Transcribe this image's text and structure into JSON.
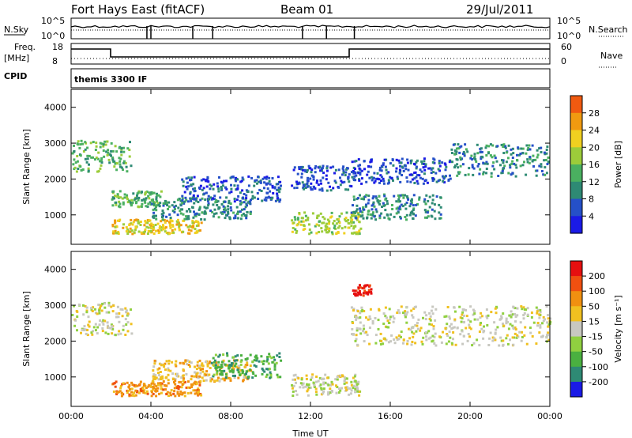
{
  "header": {
    "station": "Fort Hays East (fitACF)",
    "beam": "Beam 01",
    "date": "29/Jul/2011"
  },
  "panels": {
    "nsky_label": "N.Sky",
    "nsky_ticks": [
      "10^5",
      "10^0"
    ],
    "nsearch_label": "N.Search",
    "nsearch_ticks": [
      "10^5",
      "10^0"
    ],
    "freq_label": "Freq.",
    "freq_unit": "[MHz]",
    "freq_ticks": [
      "18",
      "8"
    ],
    "nave_label": "Nave",
    "nave_ticks": [
      "60",
      "0"
    ],
    "cpid_label": "CPID",
    "cpid_value": "themis 3300 IF"
  },
  "colors": {
    "power": [
      "#1a1ae6",
      "#2550c8",
      "#2e8a74",
      "#4ab060",
      "#9ccc3a",
      "#f0d020",
      "#f09a10",
      "#f05a10",
      "#e61010"
    ],
    "velocity": [
      "#1a1ae6",
      "#2e8a74",
      "#4ab040",
      "#90d040",
      "#c8c8c0",
      "#f0c020",
      "#f09010",
      "#f05010",
      "#e61010"
    ]
  },
  "chart_data": [
    {
      "type": "heatmap",
      "name": "power",
      "xlabel": "",
      "ylabel": "Slant Range [km]",
      "x_range": [
        0,
        24
      ],
      "ylim": [
        180,
        4500
      ],
      "yticks": [
        "4000",
        "3000",
        "2000",
        "1000"
      ],
      "ytick_values": [
        4000,
        3000,
        2000,
        1000
      ],
      "colorbar": {
        "label": "Power [dB]",
        "ticks": [
          "28",
          "24",
          "20",
          "16",
          "12",
          "8",
          "4"
        ],
        "tick_values": [
          28,
          24,
          20,
          16,
          12,
          8,
          4
        ],
        "range": [
          0,
          32
        ]
      },
      "features": [
        {
          "t": [
            0.0,
            3.0
          ],
          "r": [
            2200,
            3100
          ],
          "level": 18
        },
        {
          "t": [
            2.0,
            4.5
          ],
          "r": [
            1250,
            1700
          ],
          "level": 16
        },
        {
          "t": [
            2.0,
            6.5
          ],
          "r": [
            500,
            900
          ],
          "level": 24
        },
        {
          "t": [
            4.0,
            9.0
          ],
          "r": [
            900,
            1500
          ],
          "level": 14
        },
        {
          "t": [
            5.5,
            10.5
          ],
          "r": [
            1400,
            2100
          ],
          "level": 10
        },
        {
          "t": [
            11.0,
            14.5
          ],
          "r": [
            500,
            1100
          ],
          "level": 22
        },
        {
          "t": [
            11.0,
            14.0
          ],
          "r": [
            1700,
            2400
          ],
          "level": 9
        },
        {
          "t": [
            14.0,
            18.5
          ],
          "r": [
            900,
            1600
          ],
          "level": 12
        },
        {
          "t": [
            14.0,
            19.0
          ],
          "r": [
            1900,
            2600
          ],
          "level": 11
        },
        {
          "t": [
            19.0,
            24.0
          ],
          "r": [
            2100,
            3000
          ],
          "level": 15
        }
      ]
    },
    {
      "type": "heatmap",
      "name": "velocity",
      "xlabel": "Time UT",
      "ylabel": "Slant Range [km]",
      "x_range": [
        0,
        24
      ],
      "xticks": [
        "00:00",
        "04:00",
        "08:00",
        "12:00",
        "16:00",
        "20:00",
        "00:00"
      ],
      "xtick_values": [
        0,
        4,
        8,
        12,
        16,
        20,
        24
      ],
      "ylim": [
        180,
        4500
      ],
      "yticks": [
        "4000",
        "3000",
        "2000",
        "1000"
      ],
      "ytick_values": [
        4000,
        3000,
        2000,
        1000
      ],
      "colorbar": {
        "label": "Velocity [m s⁻¹]",
        "ticks": [
          "200",
          "100",
          "50",
          "15",
          "-15",
          "-50",
          "-100",
          "-200"
        ],
        "tick_values": [
          200,
          100,
          50,
          15,
          -15,
          -50,
          -100,
          -200
        ]
      },
      "features": [
        {
          "t": [
            0.0,
            3.0
          ],
          "r": [
            2200,
            3100
          ],
          "level": 4
        },
        {
          "t": [
            2.0,
            6.5
          ],
          "r": [
            500,
            900
          ],
          "level": 6
        },
        {
          "t": [
            4.0,
            9.0
          ],
          "r": [
            900,
            1500
          ],
          "level": 5
        },
        {
          "t": [
            7.0,
            10.5
          ],
          "r": [
            1000,
            1700
          ],
          "level": 2
        },
        {
          "t": [
            11.0,
            14.5
          ],
          "r": [
            500,
            1100
          ],
          "level": 4
        },
        {
          "t": [
            14.0,
            24.0
          ],
          "r": [
            1900,
            3000
          ],
          "level": 4
        },
        {
          "t": [
            14.0,
            15.0
          ],
          "r": [
            3300,
            3600
          ],
          "level": 8
        }
      ]
    }
  ]
}
